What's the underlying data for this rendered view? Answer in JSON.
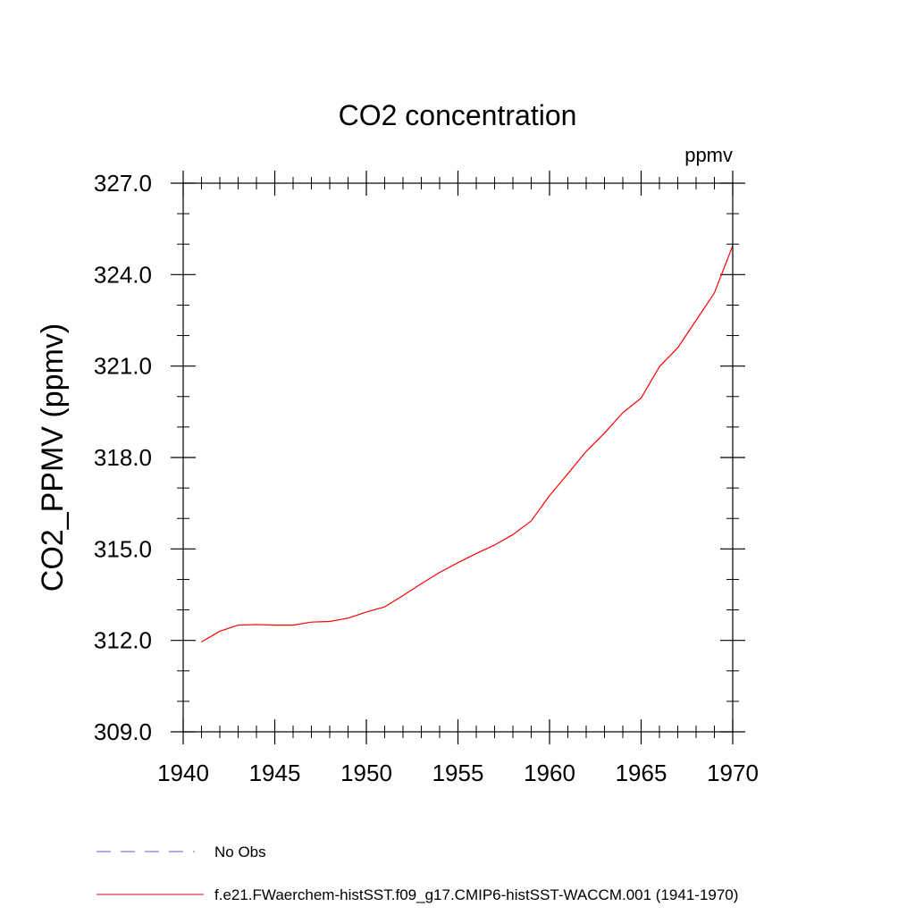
{
  "chart_data": {
    "type": "line",
    "title": "CO2 concentration",
    "units_label": "ppmv",
    "ylabel": "CO2_PPMV  (ppmv)",
    "xlabel": "",
    "xlim": [
      1940,
      1970
    ],
    "ylim": [
      309.0,
      327.0
    ],
    "x_ticks": [
      1940,
      1945,
      1950,
      1955,
      1960,
      1965,
      1970
    ],
    "y_ticks": [
      309.0,
      312.0,
      315.0,
      318.0,
      321.0,
      324.0,
      327.0
    ],
    "x_tick_labels": [
      "1940",
      "1945",
      "1950",
      "1955",
      "1960",
      "1965",
      "1970"
    ],
    "y_tick_labels": [
      "309.0",
      "312.0",
      "315.0",
      "318.0",
      "321.0",
      "324.0",
      "327.0"
    ],
    "x_minor_step": 1,
    "y_minor_step": 1,
    "grid": false,
    "legend_position": "bottom",
    "series": [
      {
        "name": "f.e21.FWaerchem-histSST.f09_g17.CMIP6-histSST-WACCM.001 (1941-1970)",
        "color": "#ff0000",
        "style": "solid",
        "x": [
          1941,
          1942,
          1943,
          1944,
          1945,
          1946,
          1947,
          1948,
          1949,
          1950,
          1951,
          1952,
          1953,
          1954,
          1955,
          1956,
          1957,
          1958,
          1959,
          1960,
          1961,
          1962,
          1963,
          1964,
          1965,
          1966,
          1967,
          1968,
          1969,
          1970
        ],
        "y": [
          311.95,
          312.3,
          312.5,
          312.52,
          312.5,
          312.5,
          312.6,
          312.62,
          312.73,
          312.93,
          313.1,
          313.47,
          313.86,
          314.23,
          314.55,
          314.85,
          315.13,
          315.47,
          315.92,
          316.75,
          317.47,
          318.2,
          318.8,
          319.47,
          319.95,
          320.98,
          321.6,
          322.5,
          323.4,
          324.95
        ]
      }
    ],
    "legend": [
      {
        "label": "No Obs",
        "color": "#6a5acd",
        "style": "dashed"
      },
      {
        "label": "f.e21.FWaerchem-histSST.f09_g17.CMIP6-histSST-WACCM.001 (1941-1970)",
        "color": "#ff0000",
        "style": "solid"
      }
    ]
  }
}
